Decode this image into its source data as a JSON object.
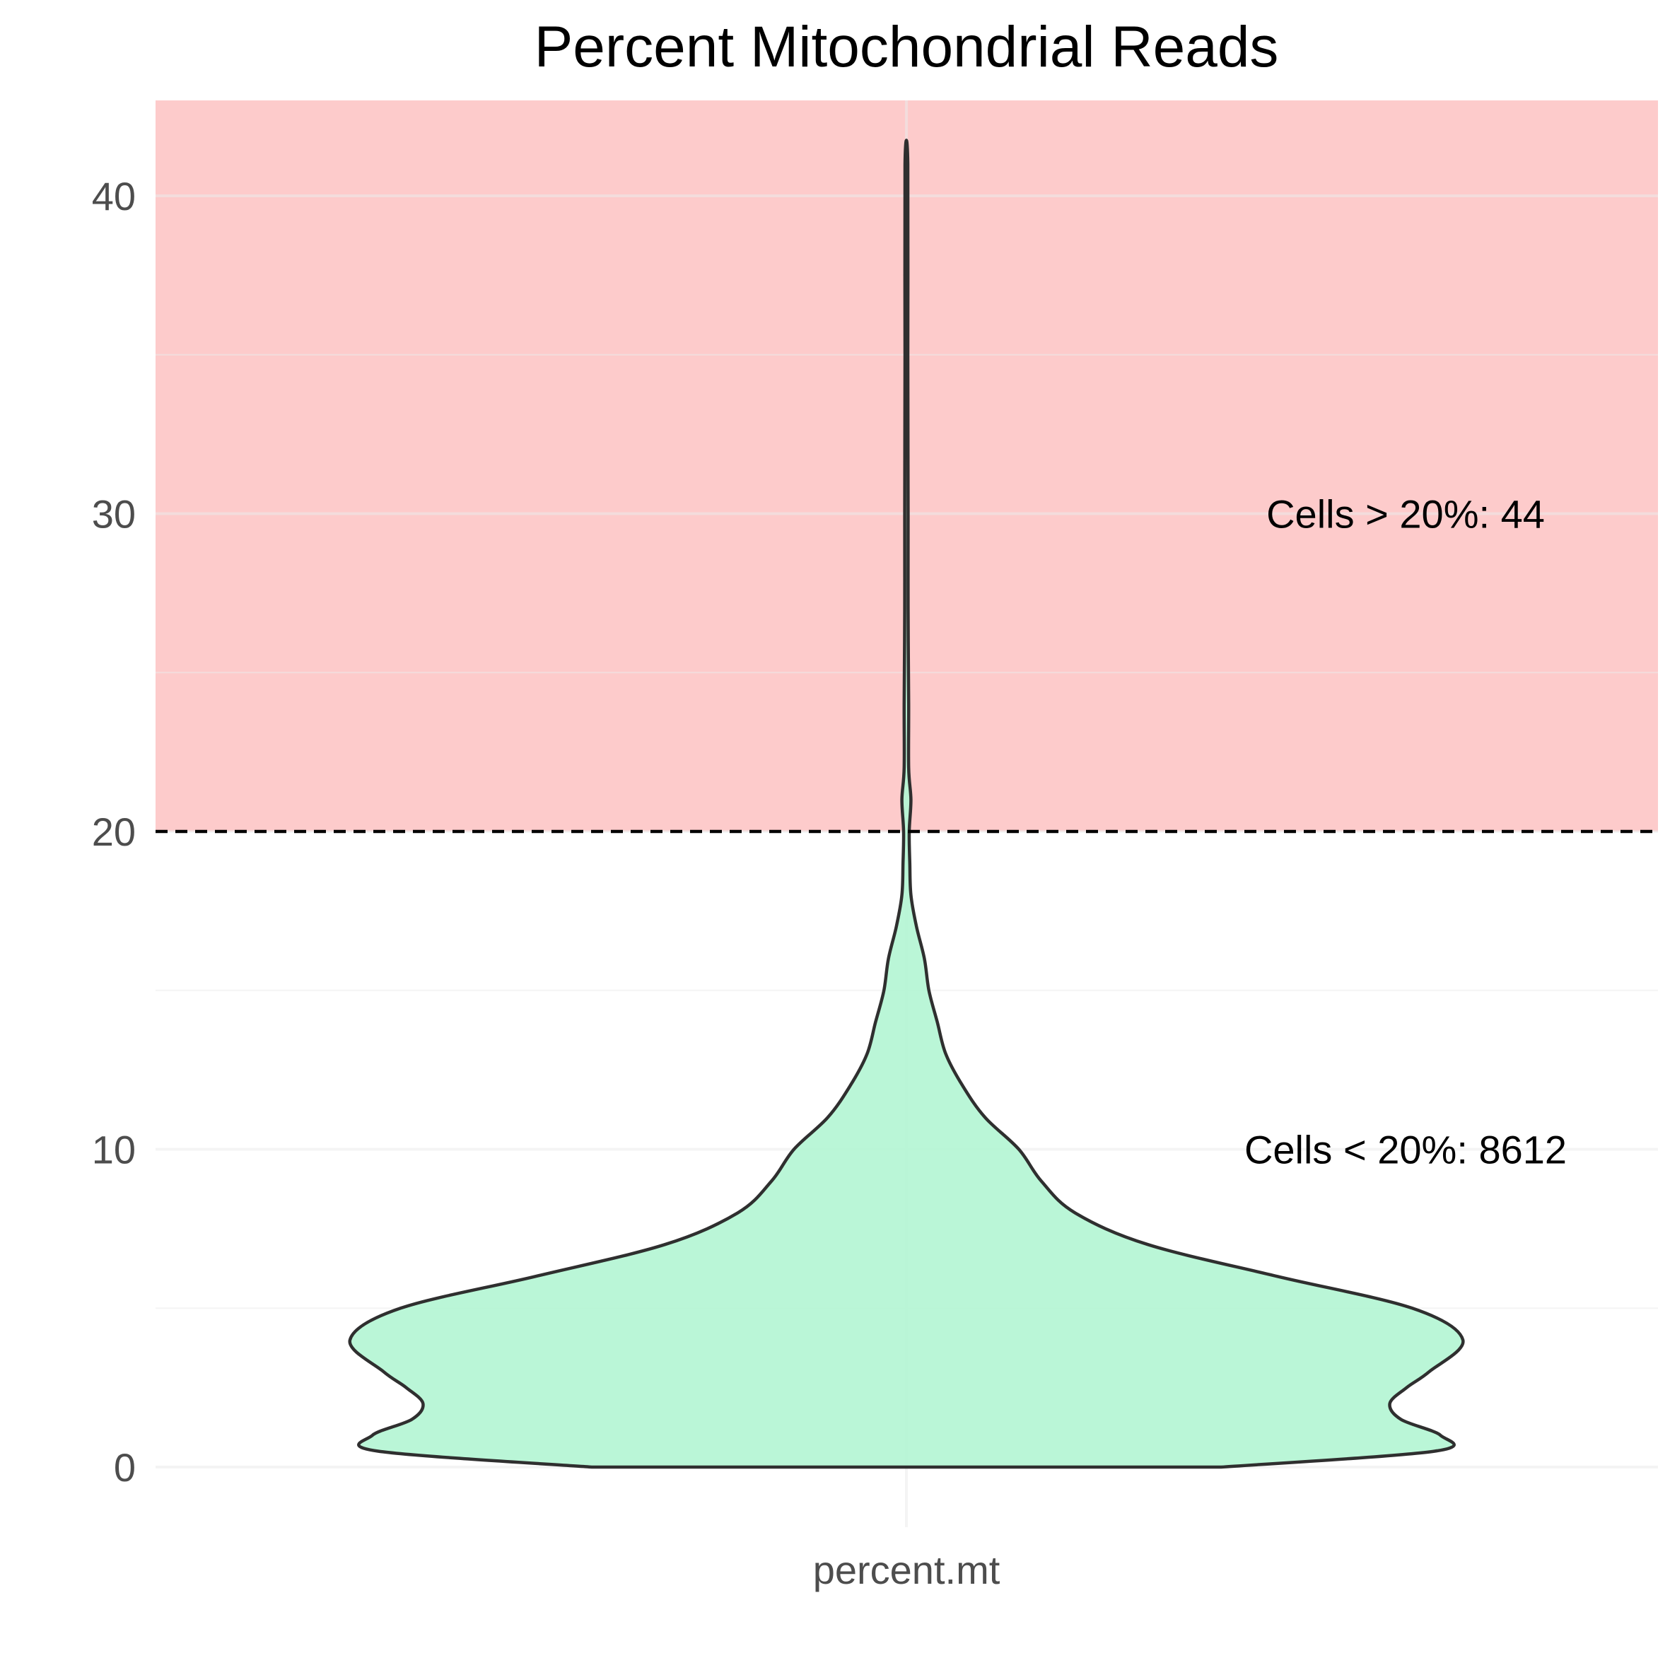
{
  "chart_data": {
    "type": "violin",
    "title": "Percent Mitochondrial Reads",
    "xlabel": "",
    "ylabel": "",
    "categories": [
      "percent.mt"
    ],
    "ylim": [
      -2,
      43
    ],
    "y_ticks": [
      0,
      10,
      20,
      30,
      40
    ],
    "grid": true,
    "threshold": 20,
    "colors": {
      "violin_fill": "#b2f5d3",
      "violin_stroke": "#2f2f2f",
      "high_region": "#fdcbcb",
      "threshold_line": "#000000",
      "grid": "#ebebeb"
    },
    "annotations": [
      {
        "text": "Cells > 20%: 44",
        "y": 30
      },
      {
        "text": "Cells < 20%: 8612",
        "y": 10
      }
    ],
    "density_profile": {
      "description_units": "y in percent, half_width relative to max (1.0)",
      "y": [
        0,
        0.5,
        1.0,
        1.5,
        2.0,
        2.5,
        3.0,
        4.0,
        5.0,
        6.0,
        7.0,
        8.0,
        9.0,
        10.0,
        11.0,
        12.0,
        13.0,
        14.0,
        15.0,
        16.0,
        17.0,
        18.0,
        19.0,
        20.0,
        21.0,
        22.0,
        24.0,
        27.0,
        30.0,
        35.0,
        41.0
      ],
      "half_width": [
        0.56,
        0.94,
        0.95,
        0.88,
        0.86,
        0.89,
        0.93,
        0.99,
        0.9,
        0.66,
        0.43,
        0.3,
        0.24,
        0.2,
        0.14,
        0.1,
        0.07,
        0.055,
        0.04,
        0.032,
        0.018,
        0.008,
        0.006,
        0.005,
        0.008,
        0.004,
        0.004,
        0.003,
        0.003,
        0.002,
        0.001
      ]
    }
  }
}
